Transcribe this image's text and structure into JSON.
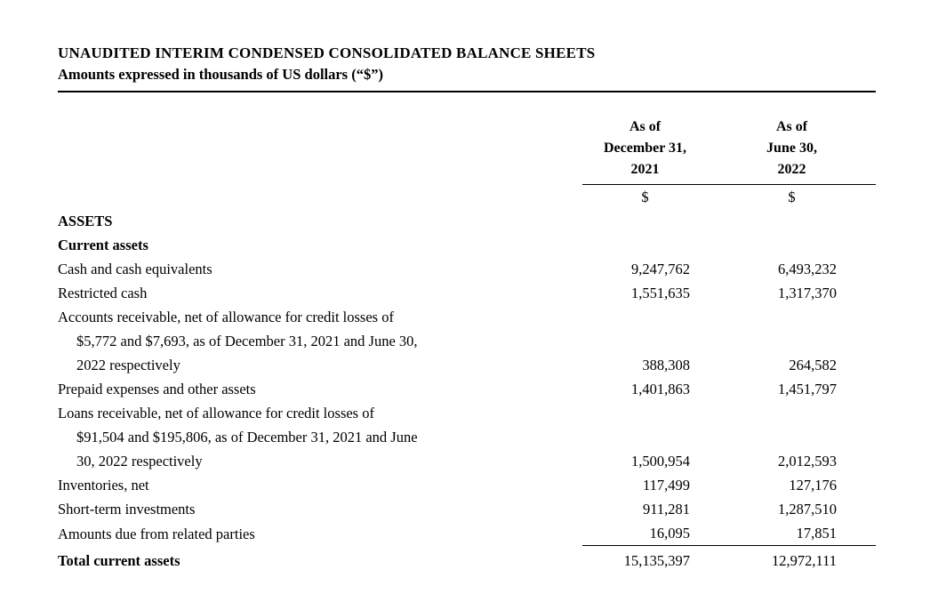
{
  "document": {
    "title": "UNAUDITED INTERIM CONDENSED CONSOLIDATED BALANCE SHEETS",
    "subtitle": "Amounts expressed in thousands of US dollars (“$”)"
  },
  "table": {
    "columns": [
      {
        "lines": [
          "As of",
          "December 31,",
          "2021"
        ],
        "currency": "$"
      },
      {
        "lines": [
          "As of",
          "June 30,",
          "2022"
        ],
        "currency": "$"
      }
    ],
    "rows": [
      {
        "style": "section",
        "lines": [
          "ASSETS"
        ],
        "values": [
          "",
          ""
        ]
      },
      {
        "style": "section",
        "lines": [
          "Current assets"
        ],
        "values": [
          "",
          ""
        ]
      },
      {
        "style": "item",
        "lines": [
          "Cash and cash equivalents"
        ],
        "values": [
          "9,247,762",
          "6,493,232"
        ]
      },
      {
        "style": "item",
        "lines": [
          "Restricted cash"
        ],
        "values": [
          "1,551,635",
          "1,317,370"
        ]
      },
      {
        "style": "item",
        "lines": [
          "Accounts receivable, net of allowance for credit losses of",
          "$5,772 and $7,693, as of December 31, 2021 and June 30,",
          "2022 respectively"
        ],
        "values": [
          "388,308",
          "264,582"
        ]
      },
      {
        "style": "item",
        "lines": [
          "Prepaid expenses and other assets"
        ],
        "values": [
          "1,401,863",
          "1,451,797"
        ]
      },
      {
        "style": "item",
        "lines": [
          "Loans receivable, net of allowance for credit losses of",
          "$91,504 and $195,806, as of December 31, 2021 and June",
          "30, 2022 respectively"
        ],
        "values": [
          "1,500,954",
          "2,012,593"
        ]
      },
      {
        "style": "item",
        "lines": [
          "Inventories, net"
        ],
        "values": [
          "117,499",
          "127,176"
        ]
      },
      {
        "style": "item",
        "lines": [
          "Short-term investments"
        ],
        "values": [
          "911,281",
          "1,287,510"
        ]
      },
      {
        "style": "item",
        "lines": [
          "Amounts due from related parties"
        ],
        "values": [
          "16,095",
          "17,851"
        ]
      },
      {
        "style": "total",
        "lines": [
          "Total current assets"
        ],
        "values": [
          "15,135,397",
          "12,972,111"
        ]
      }
    ]
  }
}
